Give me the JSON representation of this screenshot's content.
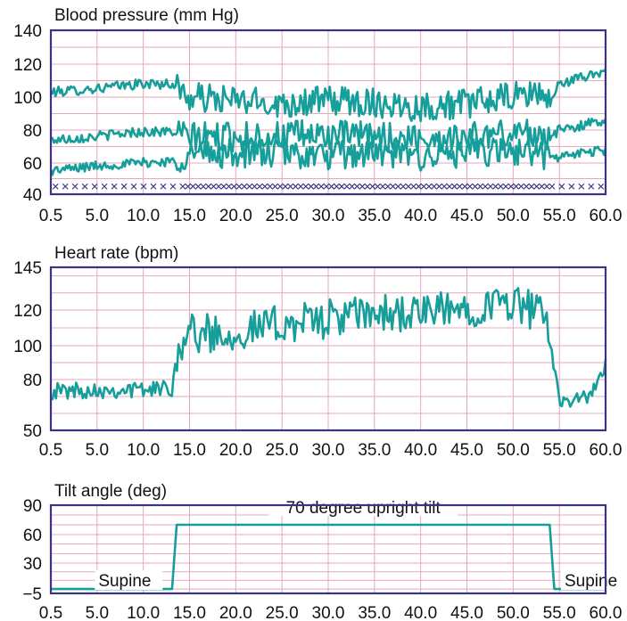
{
  "chart_data": [
    {
      "type": "line",
      "title": "Blood pressure (mm Hg)",
      "xlim": [
        0.5,
        60.0
      ],
      "ylim": [
        40,
        140
      ],
      "x_ticks": [
        "0.5",
        "5.0",
        "10.0",
        "15.0",
        "20.0",
        "25.0",
        "30.0",
        "35.0",
        "40.0",
        "45.0",
        "50.0",
        "55.0",
        "60.0"
      ],
      "y_ticks": [
        "40",
        "60",
        "80",
        "100",
        "120",
        "140"
      ],
      "grid": true,
      "series": [
        {
          "values_x": [
            0.5,
            5,
            10,
            13.5,
            14,
            15,
            20,
            25,
            30,
            35,
            40,
            45,
            50,
            53,
            54,
            55,
            60
          ],
          "values": [
            103,
            105,
            108,
            108,
            107,
            100,
            98,
            96,
            98,
            97,
            94,
            96,
            100,
            103,
            96,
            108,
            116
          ]
        },
        {
          "values_x": [
            0.5,
            5,
            10,
            13.5,
            14,
            15,
            20,
            25,
            30,
            35,
            40,
            45,
            50,
            53,
            54,
            55,
            60
          ],
          "values": [
            74,
            76,
            79,
            79,
            78,
            76,
            76,
            77,
            77,
            76,
            75,
            76,
            78,
            79,
            74,
            80,
            86
          ]
        },
        {
          "values_x": [
            0.5,
            5,
            10,
            13.5,
            14,
            15,
            20,
            25,
            30,
            35,
            40,
            45,
            50,
            53,
            54,
            55,
            60
          ],
          "values": [
            55,
            58,
            60,
            61,
            61,
            65,
            66,
            66,
            64,
            66,
            64,
            66,
            67,
            67,
            62,
            64,
            68
          ]
        }
      ],
      "marker_row": {
        "y": 45,
        "marker": "×",
        "x_start": 1.0,
        "x_end": 60.0
      }
    },
    {
      "type": "line",
      "title": "Heart rate (bpm)",
      "xlim": [
        0.5,
        60.0
      ],
      "ylim": [
        50,
        145
      ],
      "x_ticks": [
        "0.5",
        "5.0",
        "10.0",
        "15.0",
        "20.0",
        "25.0",
        "30.0",
        "35.0",
        "40.0",
        "45.0",
        "50.0",
        "55.0",
        "60.0"
      ],
      "y_ticks": [
        "50",
        "80",
        "100",
        "120",
        "145"
      ],
      "grid": true,
      "series": [
        {
          "values_x": [
            0.5,
            5,
            10,
            13.5,
            14,
            15,
            20,
            25,
            30,
            35,
            40,
            45,
            50,
            53,
            54,
            55,
            58,
            60
          ],
          "values": [
            73,
            74,
            74,
            75,
            95,
            107,
            107,
            112,
            115,
            118,
            118,
            121,
            125,
            118,
            105,
            69,
            68,
            88
          ]
        }
      ]
    },
    {
      "type": "line",
      "title": "Tilt angle (deg)",
      "xlim": [
        0.5,
        60.0
      ],
      "ylim": [
        -5,
        90
      ],
      "x_ticks": [
        "0.5",
        "5.0",
        "10.0",
        "15.0",
        "20.0",
        "25.0",
        "30.0",
        "35.0",
        "40.0",
        "45.0",
        "50.0",
        "55.0",
        "60.0"
      ],
      "y_ticks": [
        "−5",
        "30",
        "60",
        "90"
      ],
      "grid": true,
      "series": [
        {
          "values_x": [
            0.5,
            13.5,
            14.0,
            54.0,
            54.5,
            60.0
          ],
          "values": [
            0,
            0,
            70,
            70,
            0,
            0
          ]
        }
      ],
      "annotations": {
        "left": "Supine",
        "middle": "70 degree upright tilt",
        "right": "Supine"
      }
    }
  ],
  "colors": {
    "frame": "#3d3182",
    "grid": "#e6a9bc",
    "series": "#159e9a",
    "marker": "#3d3182"
  }
}
